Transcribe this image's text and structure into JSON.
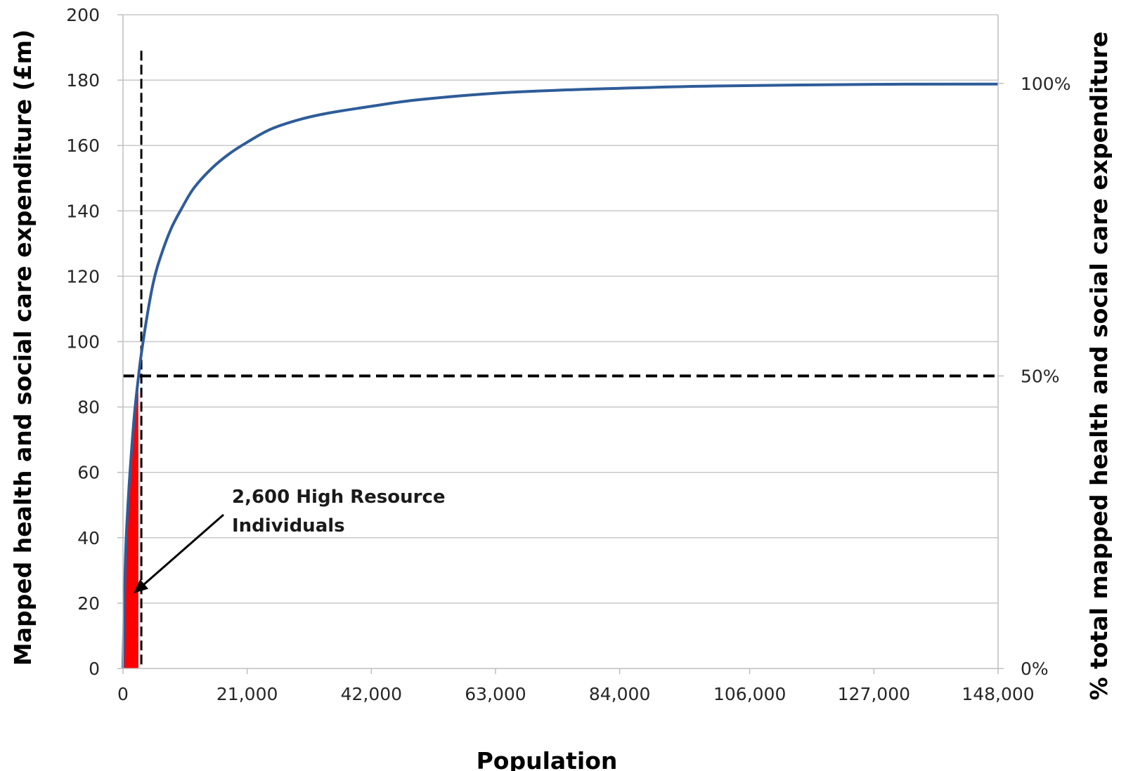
{
  "chart_data": {
    "type": "line",
    "title": "",
    "xlabel": "Population",
    "ylabel": "Mapped health and social care expenditure (£m)",
    "y2label": "% total mapped health and social care expenditure",
    "xlim": [
      0,
      148000
    ],
    "ylim": [
      0,
      200
    ],
    "y2lim": [
      0,
      100
    ],
    "x_ticks": [
      "0",
      "21,000",
      "42,000",
      "63,000",
      "84,000",
      "106,000",
      "127,000",
      "148,000"
    ],
    "x_tick_values": [
      0,
      21000,
      42000,
      63000,
      84000,
      106000,
      127000,
      148000
    ],
    "y_ticks": [
      "0",
      "20",
      "40",
      "60",
      "80",
      "100",
      "120",
      "140",
      "160",
      "180",
      "200"
    ],
    "y_tick_values": [
      0,
      20,
      40,
      60,
      80,
      100,
      120,
      140,
      160,
      180,
      200
    ],
    "y2_ticks": [
      {
        "label": "0%",
        "value": 0
      },
      {
        "label": "50%",
        "value": 89.5
      },
      {
        "label": "100%",
        "value": 179
      }
    ],
    "grid": true,
    "series": [
      {
        "color": "#2e5c99",
        "x": [
          0,
          200,
          500,
          1000,
          1500,
          2000,
          2600,
          3000,
          4000,
          5000,
          6000,
          8000,
          10000,
          12000,
          15000,
          18000,
          21000,
          25000,
          30000,
          35000,
          42000,
          50000,
          63000,
          75000,
          84000,
          100000,
          127000,
          148000
        ],
        "y": [
          0,
          18,
          38,
          55,
          68,
          79,
          89,
          95,
          107,
          117,
          124,
          134,
          141,
          147,
          153,
          157.5,
          161,
          165,
          168,
          170,
          172,
          174,
          176,
          177,
          177.5,
          178.2,
          178.7,
          178.8
        ]
      }
    ],
    "reference_lines": [
      {
        "orientation": "horizontal",
        "y": 89.5,
        "style": "dashed",
        "color": "#000000"
      },
      {
        "orientation": "vertical",
        "x": 3100,
        "y_range": [
          0,
          189
        ],
        "style": "dashed",
        "color": "#000000"
      }
    ],
    "shaded_region": {
      "x_range": [
        0,
        2600
      ],
      "color": "#ff0000"
    },
    "annotation": {
      "lines": [
        "2,600 High Resource",
        "Individuals"
      ],
      "arrow_to": {
        "x": 1800,
        "y": 23
      }
    }
  }
}
